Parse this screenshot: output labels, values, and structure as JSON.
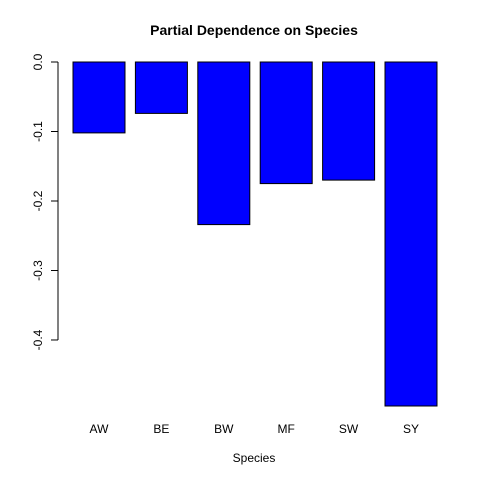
{
  "chart_data": {
    "type": "bar",
    "title": "Partial Dependence on Species",
    "xlabel": "Species",
    "ylabel": "",
    "categories": [
      "AW",
      "BE",
      "BW",
      "MF",
      "SW",
      "SY"
    ],
    "values": [
      -0.102,
      -0.074,
      -0.234,
      -0.175,
      -0.17,
      -0.495
    ],
    "ylim": [
      -0.495,
      0.0
    ],
    "yticks": [
      0.0,
      -0.1,
      -0.2,
      -0.3,
      -0.4
    ],
    "ytick_labels": [
      "0.0",
      "-0.1",
      "-0.2",
      "-0.3",
      "-0.4"
    ],
    "bar_color": "#0000FF",
    "bar_border": "#000000",
    "grid": false,
    "legend": "none"
  }
}
